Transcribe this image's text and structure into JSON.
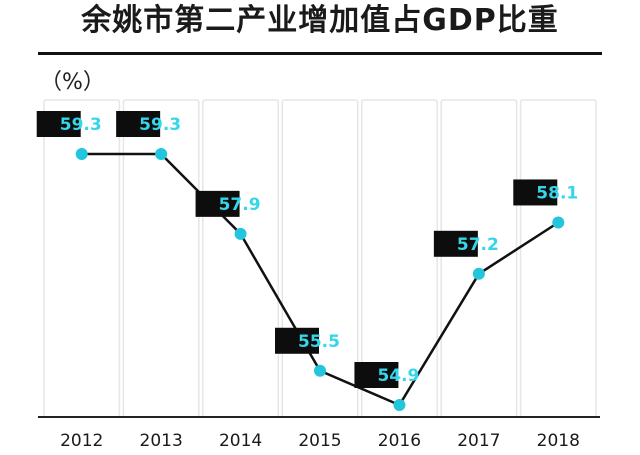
{
  "header": {
    "title": "余姚市第二产业增加值占GDP比重",
    "unit": "（%）"
  },
  "chart_data": {
    "type": "line",
    "title": "余姚市第二产业增加值占GDP比重",
    "ylabel": "（%）",
    "categories": [
      "2012",
      "2013",
      "2014",
      "2015",
      "2016",
      "2017",
      "2018"
    ],
    "series": [
      {
        "values": [
          59.3,
          59.3,
          57.9,
          55.5,
          54.9,
          57.2,
          58.1
        ]
      }
    ],
    "data_labels": [
      "59.3",
      "59.3",
      "57.9",
      "55.5",
      "54.9",
      "57.2",
      "58.1"
    ],
    "colors": {
      "point": "#22c5dc",
      "line": "#111111",
      "label_bg": "#0d0d0d",
      "label_text": "#35d6ea"
    },
    "grid": false,
    "legend": "none"
  }
}
